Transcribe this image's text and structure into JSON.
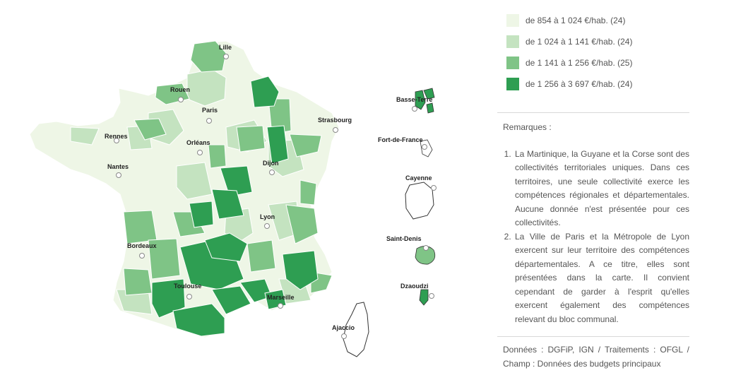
{
  "legend": {
    "items": [
      {
        "label": "de 854 à 1 024 €/hab. (24)",
        "color": "#eef6e6"
      },
      {
        "label": "de 1 024 à 1 141 €/hab. (24)",
        "color": "#c4e3c0"
      },
      {
        "label": "de 1 141 à 1 256 €/hab. (25)",
        "color": "#7fc486"
      },
      {
        "label": "de 1 256 à 3 697 €/hab. (24)",
        "color": "#2e9e52"
      }
    ]
  },
  "remarks": {
    "title": "Remarques :",
    "items": [
      "La Martinique, la Guyane et la Corse sont des collectivités territoriales uniques. Dans ces territoires, une seule collectivité exerce les compétences régionales et départementales. Aucune donnée n'est présentée pour ces collectivités.",
      "La Ville de Paris et la Métropole de Lyon exercent sur leur territoire des compétences départementales. A ce titre, elles sont présentées dans la carte. Il convient cependant de garder à l'esprit qu'elles exercent également des compétences relevant du bloc communal."
    ]
  },
  "source": "Données : DGFiP, IGN / Traitements : OFGL / Champ : Données des budgets principaux",
  "cities": {
    "lille": "Lille",
    "rouen": "Rouen",
    "paris": "Paris",
    "strasbourg": "Strasbourg",
    "rennes": "Rennes",
    "orleans": "Orléans",
    "nantes": "Nantes",
    "dijon": "Dijon",
    "lyon": "Lyon",
    "bordeaux": "Bordeaux",
    "toulouse": "Toulouse",
    "marseille": "Marseille",
    "ajaccio": "Ajaccio",
    "basse_terre": "Basse-Terre",
    "fort_de_france": "Fort-de-France",
    "cayenne": "Cayenne",
    "saint_denis": "Saint-Denis",
    "dzaoudzi": "Dzaoudzi"
  }
}
